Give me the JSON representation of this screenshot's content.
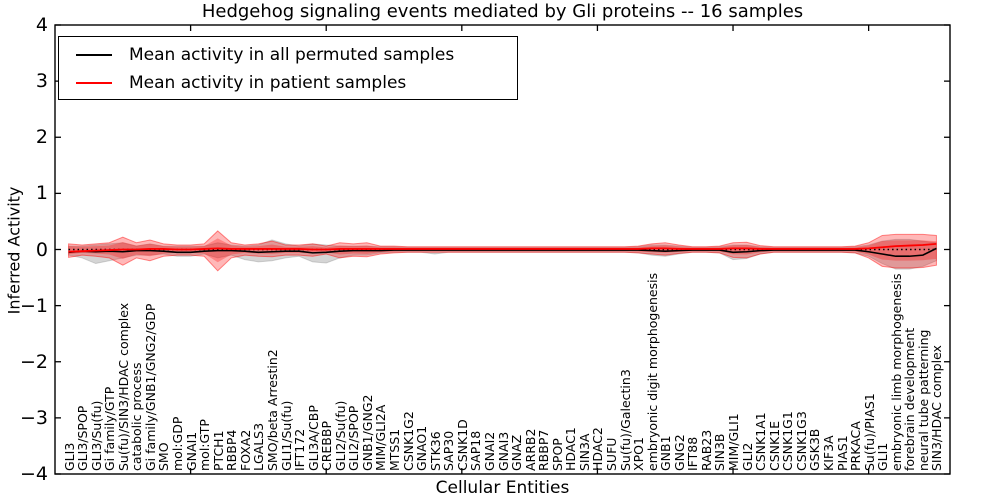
{
  "title": "Hedgehog signaling events mediated by Gli proteins -- 16 samples",
  "axes": {
    "ylabel": "Inferred Activity",
    "xlabel": "Cellular Entities",
    "y_tick_labels": [
      "4",
      "3",
      "2",
      "1",
      "0",
      "−1",
      "−2",
      "−3",
      "−4"
    ],
    "y_tick_values": [
      4,
      3,
      2,
      1,
      0,
      -1,
      -2,
      -3,
      -4
    ],
    "x_major_tick_values": [
      10,
      20,
      30,
      40,
      50,
      60
    ]
  },
  "legend": {
    "items": [
      {
        "label": "Mean activity in all permuted samples",
        "color": "#000000"
      },
      {
        "label": "Mean activity in patient samples",
        "color": "#ff0000"
      }
    ]
  },
  "colors": {
    "patient_line": "#ff0000",
    "permuted_line": "#000000",
    "patient_band": "rgba(255,0,0,0.28)",
    "permuted_band": "rgba(128,128,128,0.33)",
    "zero_line": "#000000",
    "axis": "#000000"
  },
  "chart_data": {
    "type": "line",
    "title": "Hedgehog signaling events mediated by Gli proteins -- 16 samples",
    "xlabel": "Cellular Entities",
    "ylabel": "Inferred Activity",
    "ylim": [
      -4,
      4
    ],
    "grid": false,
    "legend_position": "upper left",
    "zero_reference_line": 0,
    "categories": [
      "GLI3",
      "GLI3/SPOP",
      "GLI3/Su(fu)",
      "Gi family/GTP",
      "Su(fu)/SIN3/HDAC complex",
      "catabolic process",
      "Gi family/GNB1/GNG2/GDP",
      "SMO",
      "mol:GDP",
      "GNAI1",
      "mol:GTP",
      "PTCH1",
      "RBBP4",
      "FOXA2",
      "LGALS3",
      "SMO/beta Arrestin2",
      "GLI1/Su(fu)",
      "IFT172",
      "GLI3A/CBP",
      "CREBBP",
      "GLI2/Su(fu)",
      "GLI2/SPOP",
      "GNB1/GNG2",
      "MIM/GLI2A",
      "MTSS1",
      "CSNK1G2",
      "GNAO1",
      "STK36",
      "SAP30",
      "CSNK1D",
      "SAP18",
      "GNAI2",
      "GNAI3",
      "GNAZ",
      "ARRB2",
      "RBBP7",
      "SPOP",
      "HDAC1",
      "SIN3A",
      "HDAC2",
      "SUFU",
      "Su(fu)/Galectin3",
      "XPO1",
      "embryonic digit morphogenesis",
      "GNB1",
      "GNG2",
      "IFT88",
      "RAB23",
      "SIN3B",
      "MIM/GLI1",
      "GLI2",
      "CSNK1A1",
      "CSNK1E",
      "CSNK1G1",
      "CSNK1G3",
      "GSK3B",
      "KIF3A",
      "PIAS1",
      "PRKACA",
      "Su(fu)/PIAS1",
      "GLI1",
      "embryonic limb morphogenesis",
      "forebrain development",
      "neural tube patterning",
      "SIN3/HDAC complex"
    ],
    "series": [
      {
        "name": "Mean activity in all permuted samples",
        "kind": "line",
        "color": "#000000",
        "values": [
          -0.05,
          -0.03,
          -0.04,
          -0.03,
          -0.04,
          -0.02,
          -0.02,
          -0.03,
          -0.05,
          -0.05,
          -0.03,
          -0.02,
          -0.02,
          -0.03,
          -0.05,
          -0.04,
          -0.03,
          -0.03,
          -0.06,
          -0.05,
          -0.03,
          -0.02,
          -0.02,
          -0.02,
          -0.01,
          -0.01,
          -0.01,
          -0.01,
          -0.01,
          -0.01,
          -0.01,
          -0.01,
          -0.01,
          -0.01,
          -0.01,
          -0.01,
          -0.01,
          -0.01,
          -0.01,
          -0.01,
          -0.01,
          -0.01,
          -0.01,
          -0.02,
          -0.03,
          -0.02,
          -0.01,
          -0.01,
          -0.01,
          -0.05,
          -0.04,
          -0.02,
          -0.01,
          -0.01,
          -0.01,
          -0.01,
          -0.01,
          -0.01,
          -0.01,
          -0.04,
          -0.08,
          -0.12,
          -0.12,
          -0.1,
          0.02
        ]
      },
      {
        "name": "Mean activity in patient samples",
        "kind": "line",
        "color": "#ff0000",
        "values": [
          -0.04,
          -0.03,
          -0.02,
          -0.01,
          0.0,
          0.0,
          0.01,
          0.01,
          0.0,
          0.0,
          0.01,
          0.02,
          0.01,
          0.01,
          0.01,
          0.01,
          0.01,
          0.01,
          0.0,
          0.0,
          0.01,
          0.01,
          0.01,
          0.01,
          0.01,
          0.01,
          0.01,
          0.01,
          0.01,
          0.01,
          0.01,
          0.01,
          0.01,
          0.01,
          0.01,
          0.01,
          0.01,
          0.01,
          0.01,
          0.01,
          0.01,
          0.01,
          0.01,
          0.02,
          0.02,
          0.01,
          0.01,
          0.01,
          0.01,
          0.02,
          0.02,
          0.01,
          0.01,
          0.01,
          0.01,
          0.01,
          0.01,
          0.01,
          0.01,
          0.02,
          0.04,
          0.06,
          0.07,
          0.08,
          0.1
        ]
      },
      {
        "name": "Permuted samples spread",
        "kind": "band",
        "color": "rgba(128,128,128,0.33)",
        "upper": [
          0.06,
          0.06,
          0.08,
          0.1,
          0.12,
          0.06,
          0.1,
          0.06,
          0.06,
          0.06,
          0.06,
          0.12,
          0.08,
          0.06,
          0.08,
          0.17,
          0.1,
          0.06,
          0.1,
          0.08,
          0.06,
          0.06,
          0.06,
          0.05,
          0.05,
          0.04,
          0.04,
          0.04,
          0.04,
          0.04,
          0.04,
          0.04,
          0.04,
          0.04,
          0.04,
          0.04,
          0.04,
          0.04,
          0.04,
          0.04,
          0.04,
          0.04,
          0.05,
          0.08,
          0.08,
          0.06,
          0.04,
          0.04,
          0.05,
          0.08,
          0.08,
          0.05,
          0.04,
          0.04,
          0.04,
          0.04,
          0.04,
          0.04,
          0.05,
          0.08,
          0.15,
          0.18,
          0.18,
          0.15,
          0.12
        ],
        "lower": [
          -0.1,
          -0.15,
          -0.25,
          -0.2,
          -0.15,
          -0.1,
          -0.1,
          -0.08,
          -0.12,
          -0.12,
          -0.08,
          -0.15,
          -0.1,
          -0.18,
          -0.22,
          -0.2,
          -0.15,
          -0.12,
          -0.22,
          -0.24,
          -0.15,
          -0.1,
          -0.1,
          -0.06,
          -0.05,
          -0.05,
          -0.05,
          -0.08,
          -0.05,
          -0.05,
          -0.05,
          -0.05,
          -0.05,
          -0.05,
          -0.05,
          -0.05,
          -0.05,
          -0.05,
          -0.05,
          -0.05,
          -0.05,
          -0.05,
          -0.06,
          -0.1,
          -0.12,
          -0.08,
          -0.05,
          -0.05,
          -0.06,
          -0.18,
          -0.16,
          -0.08,
          -0.05,
          -0.05,
          -0.05,
          -0.05,
          -0.05,
          -0.05,
          -0.06,
          -0.12,
          -0.25,
          -0.35,
          -0.35,
          -0.3,
          -0.2
        ]
      },
      {
        "name": "Patient samples spread",
        "kind": "band",
        "color": "rgba(255,0,0,0.28)",
        "upper": [
          0.1,
          0.08,
          0.1,
          0.12,
          0.22,
          0.12,
          0.17,
          0.1,
          0.08,
          0.08,
          0.1,
          0.33,
          0.12,
          0.08,
          0.1,
          0.15,
          0.08,
          0.08,
          0.1,
          0.06,
          0.12,
          0.1,
          0.12,
          0.06,
          0.06,
          0.05,
          0.05,
          0.05,
          0.05,
          0.05,
          0.05,
          0.05,
          0.05,
          0.05,
          0.05,
          0.05,
          0.05,
          0.05,
          0.05,
          0.05,
          0.05,
          0.05,
          0.06,
          0.1,
          0.12,
          0.08,
          0.05,
          0.05,
          0.06,
          0.12,
          0.13,
          0.07,
          0.05,
          0.05,
          0.05,
          0.05,
          0.05,
          0.05,
          0.06,
          0.12,
          0.25,
          0.27,
          0.27,
          0.27,
          0.25
        ],
        "lower": [
          -0.14,
          -0.1,
          -0.12,
          -0.15,
          -0.28,
          -0.15,
          -0.2,
          -0.12,
          -0.1,
          -0.1,
          -0.12,
          -0.38,
          -0.15,
          -0.1,
          -0.12,
          -0.13,
          -0.1,
          -0.1,
          -0.12,
          -0.08,
          -0.15,
          -0.12,
          -0.13,
          -0.08,
          -0.06,
          -0.05,
          -0.05,
          -0.05,
          -0.05,
          -0.05,
          -0.05,
          -0.05,
          -0.05,
          -0.05,
          -0.05,
          -0.05,
          -0.05,
          -0.05,
          -0.05,
          -0.05,
          -0.05,
          -0.05,
          -0.06,
          -0.08,
          -0.1,
          -0.07,
          -0.05,
          -0.05,
          -0.06,
          -0.14,
          -0.15,
          -0.08,
          -0.05,
          -0.05,
          -0.05,
          -0.05,
          -0.05,
          -0.05,
          -0.06,
          -0.15,
          -0.3,
          -0.33,
          -0.33,
          -0.32,
          -0.28
        ]
      }
    ]
  }
}
